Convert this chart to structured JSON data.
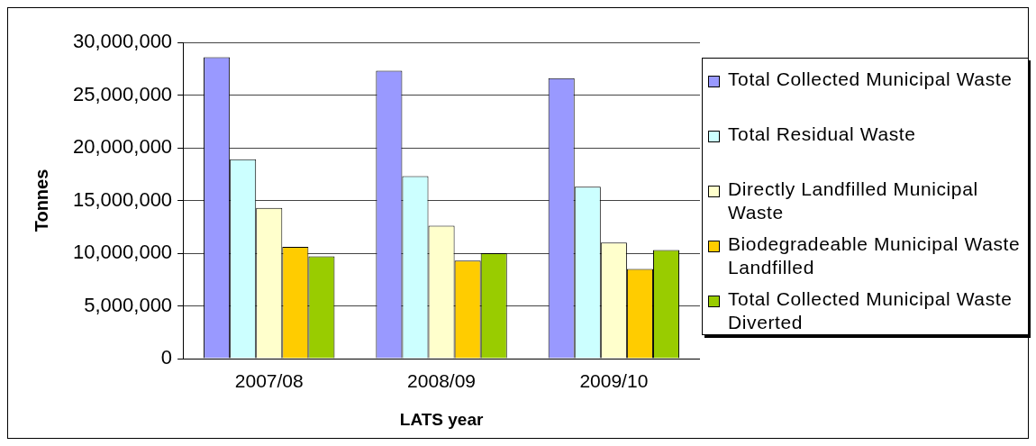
{
  "chart_data": {
    "type": "bar",
    "xlabel": "LATS year",
    "ylabel": "Tonnes",
    "categories": [
      "2007/08",
      "2008/09",
      "2009/10"
    ],
    "series": [
      {
        "name": "Total Collected Municipal Waste",
        "color": "#9999ff",
        "values": [
          28600000,
          27300000,
          26600000
        ]
      },
      {
        "name": "Total Residual Waste",
        "color": "#ccffff",
        "values": [
          18900000,
          17300000,
          16300000
        ]
      },
      {
        "name": "Directly Landfilled Municipal Waste",
        "color": "#ffffcc",
        "values": [
          14300000,
          12600000,
          11000000
        ]
      },
      {
        "name": "Biodegradeable Municipal Waste Landfilled",
        "color": "#ffcc00",
        "values": [
          10600000,
          9300000,
          8500000
        ]
      },
      {
        "name": "Total Collected Municipal Waste Diverted",
        "color": "#99cc00",
        "values": [
          9700000,
          10000000,
          10300000
        ]
      }
    ],
    "ylim": [
      0,
      30000000
    ],
    "yticks": [
      0,
      {
        "value": 5000000,
        "label": "5,000,000"
      },
      {
        "value": 10000000,
        "label": "10,000,000"
      },
      {
        "value": 15000000,
        "label": "15,000,000"
      },
      {
        "value": 20000000,
        "label": "20,000,000"
      },
      {
        "value": 25000000,
        "label": "25,000,000"
      },
      {
        "value": 30000000,
        "label": "30,000,000"
      }
    ],
    "grid": "y",
    "legend": "right"
  }
}
